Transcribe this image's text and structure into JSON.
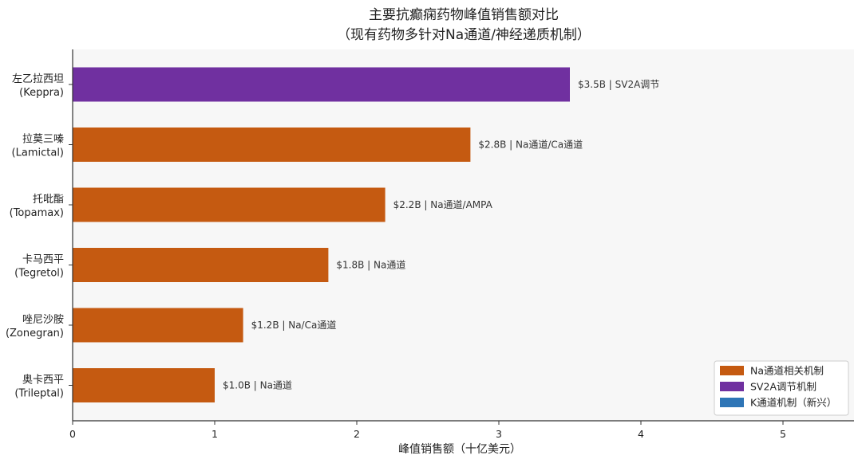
{
  "chart_data": {
    "type": "bar",
    "orientation": "horizontal",
    "title": "主要抗癫痫药物峰值销售额对比",
    "subtitle": "（现有药物多针对Na通道/神经递质机制）",
    "xlabel": "峰值销售额（十亿美元）",
    "ylabel": "",
    "xlim": [
      0,
      5.5
    ],
    "xticks": [
      0,
      1,
      2,
      3,
      4,
      5
    ],
    "grid": false,
    "legend_position": "bottom-right",
    "categories": [
      {
        "name": "左乙拉西坦",
        "brand": "(Keppra)"
      },
      {
        "name": "拉莫三嗪",
        "brand": "(Lamictal)"
      },
      {
        "name": "托吡酯",
        "brand": "(Topamax)"
      },
      {
        "name": "卡马西平",
        "brand": "(Tegretol)"
      },
      {
        "name": "唑尼沙胺",
        "brand": "(Zonegran)"
      },
      {
        "name": "奥卡西平",
        "brand": "(Trileptal)"
      }
    ],
    "values": [
      3.5,
      2.8,
      2.2,
      1.8,
      1.2,
      1.0
    ],
    "bar_labels": [
      "$3.5B | SV2A调节",
      "$2.8B | Na通道/Ca通道",
      "$2.2B | Na通道/AMPA",
      "$1.8B | Na通道",
      "$1.2B | Na/Ca通道",
      "$1.0B | Na通道"
    ],
    "bar_groups": [
      "SV2A调节机制",
      "Na通道相关机制",
      "Na通道相关机制",
      "Na通道相关机制",
      "Na通道相关机制",
      "Na通道相关机制"
    ],
    "legend": [
      {
        "label": "Na通道相关机制",
        "color": "#c55a11"
      },
      {
        "label": "SV2A调节机制",
        "color": "#7030a0"
      },
      {
        "label": "K通道机制（新兴）",
        "color": "#2e75b6"
      }
    ]
  }
}
